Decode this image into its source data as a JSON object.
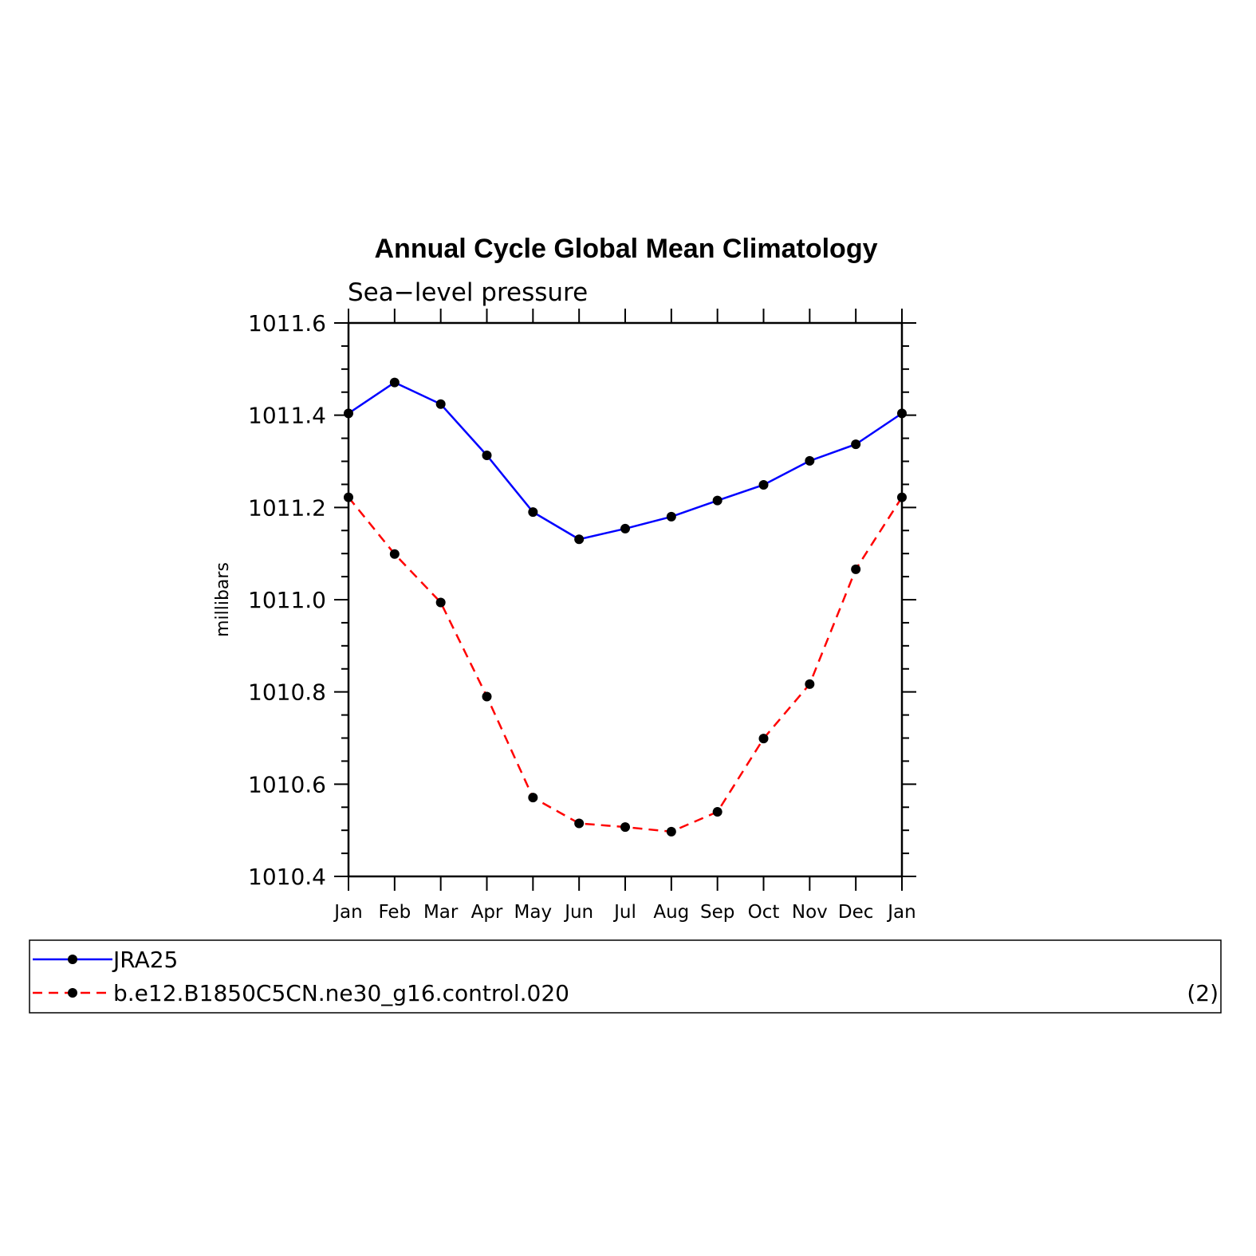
{
  "chart_data": {
    "type": "line",
    "title": "Annual Cycle Global Mean Climatology",
    "subtitle": "Sea−level pressure",
    "ylabel": "millibars",
    "xlabel": "",
    "ylim": [
      1010.4,
      1011.6
    ],
    "yticks": [
      "1010.4",
      "1010.6",
      "1010.8",
      "1011.0",
      "1011.2",
      "1011.4",
      "1011.6"
    ],
    "categories": [
      "Jan",
      "Feb",
      "Mar",
      "Apr",
      "May",
      "Jun",
      "Jul",
      "Aug",
      "Sep",
      "Oct",
      "Nov",
      "Dec",
      "Jan"
    ],
    "series": [
      {
        "name": "JRA25",
        "color": "#0000ff",
        "dash": "solid",
        "marker": "filled-circle",
        "values": [
          1011.404,
          1011.471,
          1011.424,
          1011.313,
          1011.19,
          1011.131,
          1011.154,
          1011.18,
          1011.215,
          1011.249,
          1011.301,
          1011.337,
          1011.404
        ]
      },
      {
        "name": "b.e12.B1850C5CN.ne30_g16.control.020",
        "color": "#ff0000",
        "dash": "dashed",
        "marker": "filled-circle",
        "values": [
          1011.222,
          1011.099,
          1010.994,
          1010.79,
          1010.571,
          1010.515,
          1010.507,
          1010.497,
          1010.54,
          1010.699,
          1010.817,
          1011.066,
          1011.222
        ]
      }
    ],
    "legend": {
      "placement": "bottom",
      "note": "(2)"
    },
    "grid": false
  }
}
